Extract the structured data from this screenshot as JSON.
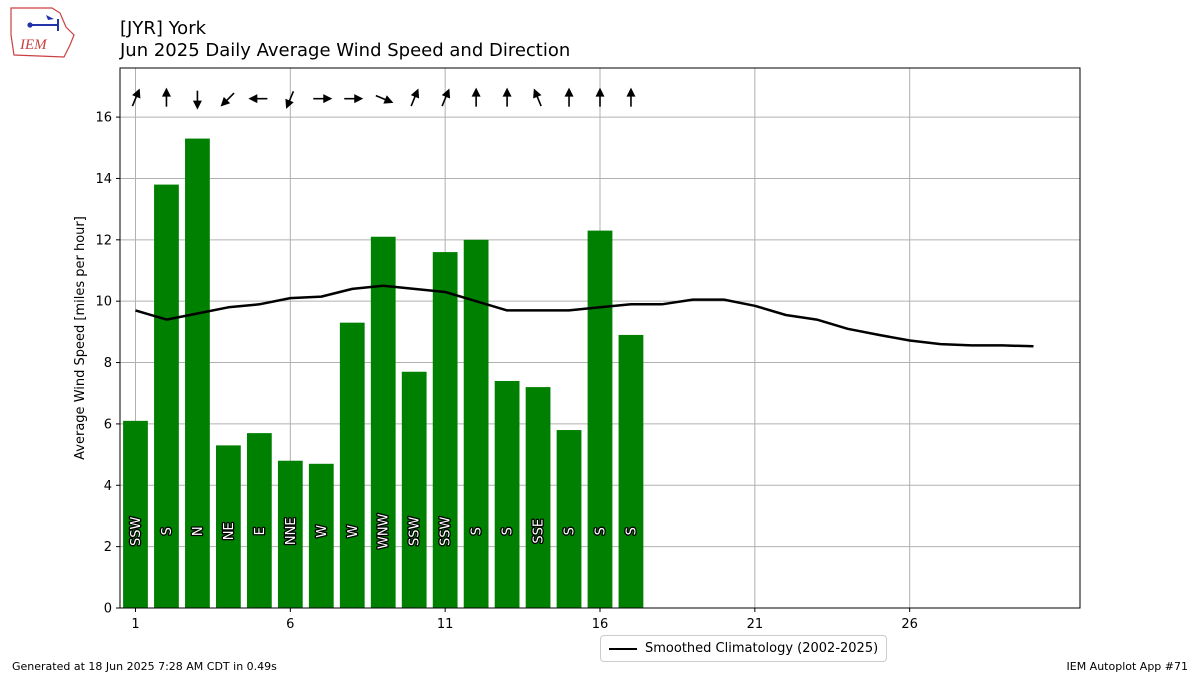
{
  "header": {
    "logo_text": "IEM",
    "title_line1": "[JYR] York",
    "title_line2": "Jun 2025 Daily Average Wind Speed and Direction"
  },
  "footer": {
    "left": "Generated at 18 Jun 2025 7:28 AM CDT in 0.49s",
    "right": "IEM Autoplot App #71"
  },
  "colors": {
    "bar": "#008000",
    "climo": "#000000",
    "grid": "#b0b0b0"
  },
  "chart_data": {
    "type": "bar",
    "ylabel": "Average Wind Speed [miles per hour]",
    "xlim": [
      0.5,
      31.5
    ],
    "ylim": [
      0,
      17.6
    ],
    "xticks": [
      1,
      6,
      11,
      16,
      21,
      26
    ],
    "yticks": [
      0,
      2,
      4,
      6,
      8,
      10,
      12,
      14,
      16
    ],
    "grid": true,
    "legend_position": "bottom-center, below plot",
    "bars": {
      "days": [
        1,
        2,
        3,
        4,
        5,
        6,
        7,
        8,
        9,
        10,
        11,
        12,
        13,
        14,
        15,
        16,
        17
      ],
      "values": [
        6.1,
        13.8,
        15.3,
        5.3,
        5.7,
        4.8,
        4.7,
        9.3,
        12.1,
        7.7,
        11.6,
        12.0,
        7.4,
        7.2,
        5.8,
        12.3,
        8.9
      ],
      "directions": [
        "SSW",
        "S",
        "N",
        "NE",
        "E",
        "NNE",
        "W",
        "W",
        "WNW",
        "SSW",
        "SSW",
        "S",
        "S",
        "SSE",
        "S",
        "S",
        "S"
      ]
    },
    "climatology": {
      "name": "Smoothed Climatology (2002-2025)",
      "days": [
        1,
        2,
        3,
        4,
        5,
        6,
        7,
        8,
        9,
        10,
        11,
        12,
        13,
        14,
        15,
        16,
        17,
        18,
        19,
        20,
        21,
        22,
        23,
        24,
        25,
        26,
        27,
        28,
        29,
        30
      ],
      "values": [
        9.7,
        9.4,
        9.6,
        9.8,
        9.9,
        10.1,
        10.15,
        10.4,
        10.5,
        10.4,
        10.3,
        10.0,
        9.7,
        9.7,
        9.7,
        9.8,
        9.9,
        9.9,
        10.05,
        10.05,
        9.85,
        9.55,
        9.4,
        9.1,
        8.9,
        8.72,
        8.6,
        8.56,
        8.56,
        8.53
      ]
    }
  }
}
